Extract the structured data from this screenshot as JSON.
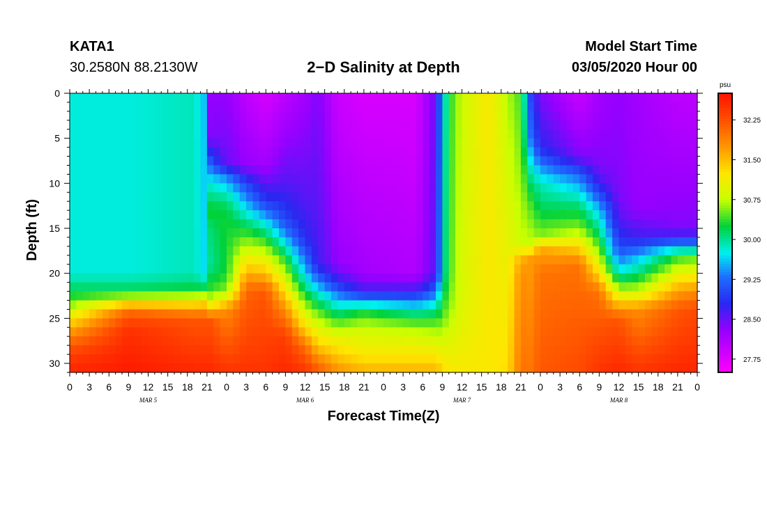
{
  "header": {
    "station": "KATA1",
    "coords": "30.2580N 88.2130W",
    "title": "2−D Salinity at Depth",
    "start_label": "Model Start Time",
    "start_value": "03/05/2020 Hour 00"
  },
  "chart_data": {
    "type": "heatmap",
    "title": "2−D Salinity at Depth",
    "xlabel": "Forecast Time(Z)",
    "ylabel": "Depth (ft)",
    "x_range_hours": [
      0,
      96
    ],
    "y_range_ft": [
      0,
      31
    ],
    "y_inverted": true,
    "y_ticks": [
      0,
      5,
      10,
      15,
      20,
      25,
      30
    ],
    "x_tick_labels": [
      "0",
      "3",
      "6",
      "9",
      "12",
      "15",
      "18",
      "21",
      "0",
      "3",
      "6",
      "9",
      "12",
      "15",
      "18",
      "21",
      "0",
      "3",
      "6",
      "9",
      "12",
      "15",
      "18",
      "21",
      "0",
      "3",
      "6",
      "9",
      "12",
      "15",
      "18",
      "21",
      "0"
    ],
    "day_labels": [
      {
        "label": "MAR 5",
        "hour": 12
      },
      {
        "label": "MAR 6",
        "hour": 36
      },
      {
        "label": "MAR 7",
        "hour": 60
      },
      {
        "label": "MAR 8",
        "hour": 84
      }
    ],
    "colorbar": {
      "unit": "psu",
      "min": 27.5,
      "max": 32.75,
      "tick_values": [
        32.25,
        31.5,
        30.75,
        30.0,
        29.25,
        28.5,
        27.75
      ],
      "tick_labels": [
        "32.25",
        "31.50",
        "30.75",
        "30.00",
        "29.25",
        "28.50",
        "27.75"
      ]
    },
    "profiles": [
      {
        "hour": 0,
        "points": [
          [
            0,
            29.8
          ],
          [
            20,
            29.8
          ],
          [
            23,
            30.4
          ],
          [
            25,
            31.2
          ],
          [
            27,
            31.9
          ],
          [
            29,
            32.4
          ],
          [
            31,
            32.6
          ]
        ]
      },
      {
        "hour": 9,
        "points": [
          [
            0,
            29.8
          ],
          [
            20,
            29.8
          ],
          [
            22,
            30.2
          ],
          [
            23,
            31.0
          ],
          [
            24,
            32.0
          ],
          [
            26,
            32.5
          ],
          [
            31,
            32.7
          ]
        ]
      },
      {
        "hour": 19,
        "points": [
          [
            0,
            29.9
          ],
          [
            20,
            29.9
          ],
          [
            22,
            30.3
          ],
          [
            23,
            31.1
          ],
          [
            25,
            32.2
          ],
          [
            31,
            32.6
          ]
        ]
      },
      {
        "hour": 20.5,
        "points": [
          [
            0,
            29.6
          ],
          [
            20,
            29.7
          ],
          [
            22,
            30.3
          ],
          [
            23,
            31.2
          ],
          [
            25,
            32.2
          ],
          [
            31,
            32.6
          ]
        ]
      },
      {
        "hour": 21.5,
        "points": [
          [
            0,
            28.3
          ],
          [
            5,
            28.4
          ],
          [
            10,
            29.8
          ],
          [
            13,
            30.3
          ],
          [
            15,
            30.1
          ],
          [
            19,
            30.0
          ],
          [
            22,
            30.4
          ],
          [
            24,
            31.4
          ],
          [
            25,
            32.2
          ],
          [
            31,
            32.6
          ]
        ]
      },
      {
        "hour": 24,
        "points": [
          [
            0,
            28.3
          ],
          [
            8,
            28.5
          ],
          [
            9,
            29.3
          ],
          [
            12,
            30.1
          ],
          [
            14,
            30.3
          ],
          [
            16,
            30.3
          ],
          [
            20,
            30.3
          ],
          [
            22,
            30.6
          ],
          [
            24,
            31.8
          ],
          [
            31,
            32.5
          ]
        ]
      },
      {
        "hour": 27,
        "points": [
          [
            0,
            28.0
          ],
          [
            8,
            28.3
          ],
          [
            10,
            29.0
          ],
          [
            14,
            30.0
          ],
          [
            16,
            30.5
          ],
          [
            18,
            31.0
          ],
          [
            20,
            31.6
          ],
          [
            22,
            32.1
          ],
          [
            31,
            32.5
          ]
        ]
      },
      {
        "hour": 30,
        "points": [
          [
            0,
            27.8
          ],
          [
            8,
            28.2
          ],
          [
            12,
            28.9
          ],
          [
            14,
            29.6
          ],
          [
            17,
            30.6
          ],
          [
            20,
            31.5
          ],
          [
            22,
            32.2
          ],
          [
            31,
            32.5
          ]
        ]
      },
      {
        "hour": 33,
        "points": [
          [
            0,
            28.0
          ],
          [
            10,
            28.6
          ],
          [
            14,
            29.0
          ],
          [
            16,
            29.5
          ],
          [
            18,
            30.2
          ],
          [
            21,
            31.0
          ],
          [
            24,
            31.8
          ],
          [
            27,
            32.4
          ],
          [
            31,
            32.6
          ]
        ]
      },
      {
        "hour": 36,
        "points": [
          [
            0,
            28.2
          ],
          [
            12,
            28.6
          ],
          [
            16,
            28.8
          ],
          [
            19,
            29.4
          ],
          [
            21,
            29.9
          ],
          [
            23,
            30.5
          ],
          [
            26,
            31.3
          ],
          [
            28,
            32.0
          ],
          [
            31,
            32.5
          ]
        ]
      },
      {
        "hour": 38,
        "points": [
          [
            0,
            28.4
          ],
          [
            14,
            28.6
          ],
          [
            19,
            28.7
          ],
          [
            21,
            29.4
          ],
          [
            23,
            30.1
          ],
          [
            25,
            30.7
          ],
          [
            28,
            31.4
          ],
          [
            30,
            32.0
          ],
          [
            31,
            32.2
          ]
        ]
      },
      {
        "hour": 41,
        "points": [
          [
            0,
            27.9
          ],
          [
            19,
            28.3
          ],
          [
            21,
            28.8
          ],
          [
            23,
            29.6
          ],
          [
            25,
            30.3
          ],
          [
            27,
            31.0
          ],
          [
            29,
            31.4
          ],
          [
            31,
            31.8
          ]
        ]
      },
      {
        "hour": 45,
        "points": [
          [
            0,
            27.8
          ],
          [
            20,
            28.2
          ],
          [
            22,
            28.7
          ],
          [
            23,
            29.4
          ],
          [
            24,
            30.2
          ],
          [
            26,
            30.8
          ],
          [
            29,
            31.2
          ],
          [
            31,
            31.6
          ]
        ]
      },
      {
        "hour": 53,
        "points": [
          [
            0,
            27.8
          ],
          [
            20,
            28.1
          ],
          [
            22,
            28.7
          ],
          [
            23,
            29.3
          ],
          [
            25,
            30.3
          ],
          [
            27,
            30.9
          ],
          [
            29,
            31.2
          ],
          [
            31,
            31.6
          ]
        ]
      },
      {
        "hour": 56,
        "points": [
          [
            0,
            28.5
          ],
          [
            20,
            28.6
          ],
          [
            22,
            29.2
          ],
          [
            24,
            30.0
          ],
          [
            26,
            30.6
          ],
          [
            29,
            31.2
          ],
          [
            31,
            31.6
          ]
        ]
      },
      {
        "hour": 57,
        "points": [
          [
            0,
            29.6
          ],
          [
            20,
            29.8
          ],
          [
            23,
            30.2
          ],
          [
            26,
            30.6
          ],
          [
            29,
            31.1
          ],
          [
            31,
            31.4
          ]
        ]
      },
      {
        "hour": 58,
        "points": [
          [
            0,
            30.3
          ],
          [
            20,
            30.4
          ],
          [
            24,
            30.6
          ],
          [
            27,
            30.9
          ],
          [
            31,
            31.2
          ]
        ]
      },
      {
        "hour": 60,
        "points": [
          [
            0,
            30.8
          ],
          [
            22,
            30.9
          ],
          [
            26,
            31.0
          ],
          [
            31,
            31.2
          ]
        ]
      },
      {
        "hour": 64,
        "points": [
          [
            0,
            31.2
          ],
          [
            31,
            31.2
          ]
        ]
      },
      {
        "hour": 67,
        "points": [
          [
            0,
            30.7
          ],
          [
            31,
            31.3
          ]
        ]
      },
      {
        "hour": 69,
        "points": [
          [
            0,
            30.4
          ],
          [
            17,
            30.8
          ],
          [
            18,
            31.5
          ],
          [
            20,
            31.8
          ],
          [
            31,
            32.0
          ]
        ]
      },
      {
        "hour": 70.5,
        "points": [
          [
            0,
            29.0
          ],
          [
            5,
            29.3
          ],
          [
            9,
            30.0
          ],
          [
            12,
            30.4
          ],
          [
            17,
            30.8
          ],
          [
            18,
            31.7
          ],
          [
            31,
            32.0
          ]
        ]
      },
      {
        "hour": 72,
        "points": [
          [
            0,
            28.4
          ],
          [
            6,
            28.8
          ],
          [
            10,
            29.9
          ],
          [
            13,
            30.2
          ],
          [
            16,
            30.6
          ],
          [
            17,
            31.6
          ],
          [
            20,
            32.0
          ],
          [
            31,
            32.2
          ]
        ]
      },
      {
        "hour": 78,
        "points": [
          [
            0,
            27.9
          ],
          [
            7,
            28.4
          ],
          [
            9,
            29.2
          ],
          [
            12,
            30.0
          ],
          [
            15,
            30.6
          ],
          [
            17,
            31.3
          ],
          [
            19,
            32.0
          ],
          [
            31,
            32.3
          ]
        ]
      },
      {
        "hour": 81,
        "points": [
          [
            0,
            28.2
          ],
          [
            8,
            28.4
          ],
          [
            10,
            28.7
          ],
          [
            13,
            29.6
          ],
          [
            16,
            30.2
          ],
          [
            18,
            30.7
          ],
          [
            20,
            31.3
          ],
          [
            22,
            32.0
          ],
          [
            31,
            32.5
          ]
        ]
      },
      {
        "hour": 84,
        "points": [
          [
            0,
            28.3
          ],
          [
            11,
            28.4
          ],
          [
            14,
            28.6
          ],
          [
            17,
            29.0
          ],
          [
            19,
            29.5
          ],
          [
            21,
            30.3
          ],
          [
            23,
            31.3
          ],
          [
            25,
            32.2
          ],
          [
            31,
            32.6
          ]
        ]
      },
      {
        "hour": 87,
        "points": [
          [
            0,
            28.2
          ],
          [
            13,
            28.3
          ],
          [
            16,
            28.7
          ],
          [
            18,
            29.5
          ],
          [
            20,
            30.1
          ],
          [
            22,
            30.8
          ],
          [
            24,
            31.8
          ],
          [
            31,
            32.5
          ]
        ]
      },
      {
        "hour": 93,
        "points": [
          [
            0,
            28.0
          ],
          [
            15,
            28.4
          ],
          [
            16,
            28.8
          ],
          [
            17,
            29.5
          ],
          [
            18,
            30.3
          ],
          [
            20,
            31.0
          ],
          [
            22,
            31.7
          ],
          [
            24,
            32.2
          ],
          [
            31,
            32.6
          ]
        ]
      },
      {
        "hour": 96,
        "points": [
          [
            0,
            28.0
          ],
          [
            15,
            28.4
          ],
          [
            16,
            28.8
          ],
          [
            17,
            29.5
          ],
          [
            18,
            30.4
          ],
          [
            20,
            31.1
          ],
          [
            22,
            31.8
          ],
          [
            24,
            32.3
          ],
          [
            31,
            32.6
          ]
        ]
      }
    ]
  }
}
